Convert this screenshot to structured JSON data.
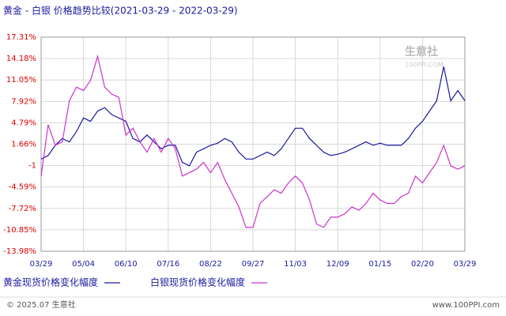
{
  "chart_data": {
    "type": "line",
    "title": "黄金 - 白银  价格趋势比较(2021-03-29 - 2022-03-29)",
    "categories": [
      "03/29",
      null,
      null,
      null,
      null,
      null,
      "05/04",
      null,
      null,
      null,
      null,
      null,
      "06/10",
      null,
      null,
      null,
      null,
      null,
      "07/16",
      null,
      null,
      null,
      null,
      null,
      "08/22",
      null,
      null,
      null,
      null,
      null,
      "09/27",
      null,
      null,
      null,
      null,
      null,
      "11/03",
      null,
      null,
      null,
      null,
      null,
      "12/09",
      null,
      null,
      null,
      null,
      null,
      "01/15",
      null,
      null,
      null,
      null,
      null,
      "02/20",
      null,
      null,
      null,
      null,
      null,
      "03/29"
    ],
    "series": [
      {
        "name": "黄金现货价格变化幅度",
        "color": "#1a1aa0",
        "values": [
          -0.5,
          0,
          1.5,
          2.5,
          2.0,
          3.5,
          5.5,
          5.0,
          6.5,
          7.0,
          6.0,
          5.5,
          5.0,
          2.5,
          2.0,
          3.0,
          2.0,
          1.0,
          1.5,
          1.5,
          -1.0,
          -1.5,
          0.5,
          1.0,
          1.5,
          1.8,
          2.5,
          2.0,
          0.5,
          -0.5,
          -0.5,
          0,
          0.5,
          0,
          1.0,
          2.5,
          4.0,
          4.0,
          2.5,
          1.5,
          0.5,
          0,
          0.2,
          0.5,
          1.0,
          1.5,
          2.0,
          1.5,
          1.8,
          1.5,
          1.5,
          1.5,
          2.5,
          4.0,
          5.0,
          6.5,
          8.0,
          13.0,
          8.0,
          9.5,
          8.0
        ]
      },
      {
        "name": "白银现货价格变化幅度",
        "color": "#cc33cc",
        "values": [
          -3.0,
          4.5,
          1.5,
          2.0,
          8.0,
          10.0,
          9.5,
          11.0,
          14.5,
          10.0,
          9.0,
          8.5,
          3.0,
          4.0,
          2.0,
          0.5,
          2.5,
          0.5,
          2.5,
          1.0,
          -3.0,
          -2.5,
          -2.0,
          -1.0,
          -2.5,
          -1.0,
          -3.5,
          -5.5,
          -7.5,
          -10.5,
          -10.5,
          -7.0,
          -6.0,
          -5.0,
          -5.5,
          -4.0,
          -3.0,
          -4.0,
          -6.5,
          -10.0,
          -10.5,
          -9.0,
          -9.0,
          -8.5,
          -7.5,
          -8.0,
          -7.0,
          -5.5,
          -6.5,
          -7.0,
          -7.0,
          -6.0,
          -5.5,
          -3.0,
          -4.0,
          -2.5,
          -1.0,
          1.5,
          -1.5,
          -2.0,
          -1.5
        ]
      }
    ],
    "ylim": [
      -13.98,
      17.31
    ],
    "yticks": [
      {
        "value": -13.98,
        "label": "-13.98%"
      },
      {
        "value": -10.85,
        "label": "-10.85%"
      },
      {
        "value": -7.72,
        "label": "-7.72%"
      },
      {
        "value": -4.59,
        "label": "-4.59%"
      },
      {
        "value": -1.47,
        "label": "-1"
      },
      {
        "value": 1.66,
        "label": "1.66%"
      },
      {
        "value": 4.79,
        "label": "4.79%"
      },
      {
        "value": 7.92,
        "label": "7.92%"
      },
      {
        "value": 11.05,
        "label": "11.05%"
      },
      {
        "value": 14.18,
        "label": "14.18%"
      },
      {
        "value": 17.31,
        "label": "17.31%"
      }
    ],
    "grid": true,
    "watermark": {
      "name": "生意社",
      "site": "100PPI.COM"
    },
    "footer": {
      "left": "© 2025.07 生意社",
      "right": "www.100PPI.com"
    }
  }
}
